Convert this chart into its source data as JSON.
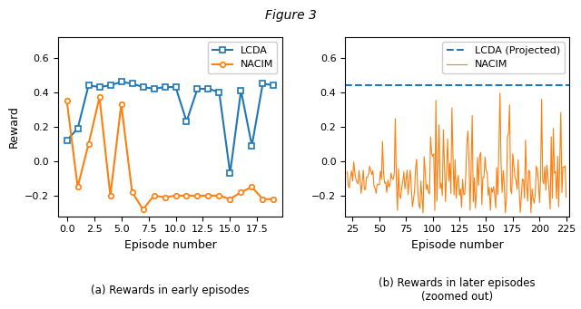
{
  "lcda_x": [
    0,
    1,
    2,
    3,
    4,
    5,
    6,
    7,
    8,
    9,
    10,
    11,
    12,
    13,
    14,
    15,
    16,
    17,
    18,
    19
  ],
  "lcda_y": [
    0.12,
    0.19,
    0.44,
    0.43,
    0.44,
    0.46,
    0.45,
    0.43,
    0.42,
    0.43,
    0.43,
    0.23,
    0.42,
    0.42,
    0.4,
    -0.07,
    0.41,
    0.09,
    0.45,
    0.44
  ],
  "nacim_early_x": [
    0,
    1,
    2,
    3,
    4,
    5,
    6,
    7,
    8,
    9,
    10,
    11,
    12,
    13,
    14,
    15,
    16,
    17,
    18,
    19
  ],
  "nacim_early_y": [
    0.35,
    -0.15,
    0.1,
    0.37,
    -0.2,
    0.33,
    -0.18,
    -0.28,
    -0.2,
    -0.21,
    -0.2,
    -0.2,
    -0.2,
    -0.2,
    -0.2,
    -0.22,
    -0.18,
    -0.15,
    -0.22,
    -0.22
  ],
  "lcda_projected": 0.44,
  "lcda_color": "#1f77b4",
  "nacim_color": "#ff7f0e",
  "xlabel": "Episode number",
  "ylabel": "Reward",
  "xlim_left": [
    -0.8,
    19.8
  ],
  "xlim_right": [
    18,
    228
  ],
  "ylim_left": [
    -0.32,
    0.72
  ],
  "ylim_right": [
    -0.32,
    0.72
  ],
  "yticks": [
    -0.2,
    0.0,
    0.2,
    0.4,
    0.6
  ],
  "xticks_left": [
    0.0,
    2.5,
    5.0,
    7.5,
    10.0,
    12.5,
    15.0,
    17.5
  ],
  "xticks_right": [
    25,
    50,
    75,
    100,
    125,
    150,
    175,
    200,
    225
  ],
  "caption_left": "(a) Rewards in early episodes",
  "caption_right": "(b) Rewards in later episodes\n(zoomed out)",
  "fig_title": "Figure 3"
}
